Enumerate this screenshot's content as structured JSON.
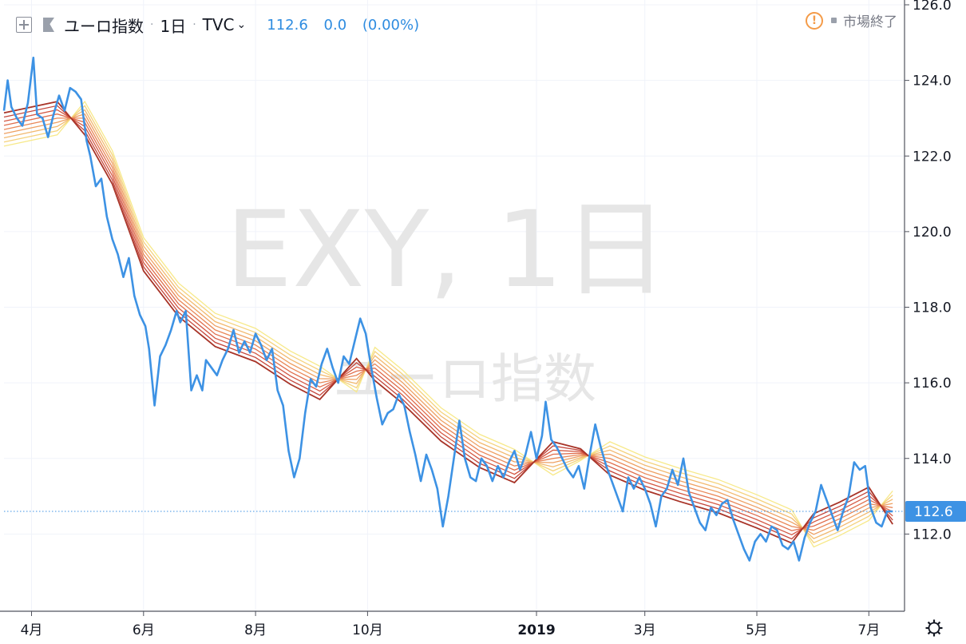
{
  "legend": {
    "symbol": "ユーロ指数",
    "interval": "1日",
    "exchange": "TVC",
    "price": "112.6",
    "change": "0.0",
    "change_pct": "(0.00%)"
  },
  "status": {
    "text": "市場終了"
  },
  "watermark": {
    "ticker": "EXY, 1日",
    "name": "ユーロ指数"
  },
  "icons": {
    "add": "plus-square-icon",
    "flag": "flag-icon",
    "alert": "alert-circle-icon",
    "settings": "gear-icon"
  },
  "colors": {
    "price_line": "#3d92e4",
    "price_badge": "#3d92e4",
    "ribbon": [
      "#f7e98a",
      "#f5d27c",
      "#f2b96f",
      "#eea062",
      "#e98757",
      "#e06e4d",
      "#d45843",
      "#c4453a",
      "#a83428"
    ]
  },
  "chart_data": {
    "type": "line",
    "title": "ユーロ指数",
    "ylim": [
      110.0,
      126.0
    ],
    "y_ticks": [
      "112.0",
      "114.0",
      "116.0",
      "118.0",
      "120.0",
      "122.0",
      "124.0",
      "126.0"
    ],
    "x_ticks": [
      "4月",
      "6月",
      "8月",
      "10月",
      "2019",
      "3月",
      "5月",
      "7月"
    ],
    "x_range": [
      "2018-03-17",
      "2019-07-20"
    ],
    "x_tick_dates": [
      "2018-04-01",
      "2018-06-01",
      "2018-08-01",
      "2018-10-01",
      "2019-01-01",
      "2019-03-01",
      "2019-05-01",
      "2019-07-01"
    ],
    "current_price": "112.6",
    "grid": true,
    "series": [
      {
        "name": "ユーロ指数",
        "style": "price",
        "points": [
          [
            "2018-03-17",
            123.2
          ],
          [
            "2018-03-19",
            124.0
          ],
          [
            "2018-03-21",
            123.3
          ],
          [
            "2018-03-24",
            123.0
          ],
          [
            "2018-03-27",
            122.8
          ],
          [
            "2018-03-30",
            123.4
          ],
          [
            "2018-04-02",
            124.6
          ],
          [
            "2018-04-04",
            123.1
          ],
          [
            "2018-04-07",
            123.0
          ],
          [
            "2018-04-10",
            122.5
          ],
          [
            "2018-04-13",
            123.1
          ],
          [
            "2018-04-16",
            123.6
          ],
          [
            "2018-04-19",
            123.2
          ],
          [
            "2018-04-22",
            123.8
          ],
          [
            "2018-04-25",
            123.7
          ],
          [
            "2018-04-28",
            123.5
          ],
          [
            "2018-05-01",
            122.4
          ],
          [
            "2018-05-03",
            122.0
          ],
          [
            "2018-05-06",
            121.2
          ],
          [
            "2018-05-09",
            121.4
          ],
          [
            "2018-05-12",
            120.4
          ],
          [
            "2018-05-15",
            119.8
          ],
          [
            "2018-05-18",
            119.4
          ],
          [
            "2018-05-21",
            118.8
          ],
          [
            "2018-05-24",
            119.3
          ],
          [
            "2018-05-27",
            118.3
          ],
          [
            "2018-05-30",
            117.8
          ],
          [
            "2018-06-02",
            117.5
          ],
          [
            "2018-06-04",
            116.9
          ],
          [
            "2018-06-07",
            115.4
          ],
          [
            "2018-06-10",
            116.7
          ],
          [
            "2018-06-13",
            117.0
          ],
          [
            "2018-06-16",
            117.4
          ],
          [
            "2018-06-19",
            117.9
          ],
          [
            "2018-06-21",
            117.6
          ],
          [
            "2018-06-24",
            117.9
          ],
          [
            "2018-06-27",
            115.8
          ],
          [
            "2018-06-30",
            116.2
          ],
          [
            "2018-07-03",
            115.8
          ],
          [
            "2018-07-05",
            116.6
          ],
          [
            "2018-07-08",
            116.4
          ],
          [
            "2018-07-11",
            116.2
          ],
          [
            "2018-07-14",
            116.6
          ],
          [
            "2018-07-17",
            116.9
          ],
          [
            "2018-07-20",
            117.4
          ],
          [
            "2018-07-23",
            116.8
          ],
          [
            "2018-07-26",
            117.1
          ],
          [
            "2018-07-29",
            116.8
          ],
          [
            "2018-08-01",
            117.3
          ],
          [
            "2018-08-04",
            117.0
          ],
          [
            "2018-08-07",
            116.6
          ],
          [
            "2018-08-10",
            116.9
          ],
          [
            "2018-08-13",
            115.8
          ],
          [
            "2018-08-16",
            115.4
          ],
          [
            "2018-08-19",
            114.2
          ],
          [
            "2018-08-22",
            113.5
          ],
          [
            "2018-08-25",
            114.0
          ],
          [
            "2018-08-28",
            115.2
          ],
          [
            "2018-08-31",
            116.1
          ],
          [
            "2018-09-03",
            115.9
          ],
          [
            "2018-09-06",
            116.5
          ],
          [
            "2018-09-09",
            116.9
          ],
          [
            "2018-09-12",
            116.4
          ],
          [
            "2018-09-15",
            116.0
          ],
          [
            "2018-09-18",
            116.7
          ],
          [
            "2018-09-21",
            116.5
          ],
          [
            "2018-09-24",
            117.1
          ],
          [
            "2018-09-27",
            117.7
          ],
          [
            "2018-09-30",
            117.3
          ],
          [
            "2018-10-03",
            116.4
          ],
          [
            "2018-10-06",
            115.6
          ],
          [
            "2018-10-09",
            114.9
          ],
          [
            "2018-10-12",
            115.2
          ],
          [
            "2018-10-15",
            115.3
          ],
          [
            "2018-10-18",
            115.7
          ],
          [
            "2018-10-21",
            115.4
          ],
          [
            "2018-10-24",
            114.7
          ],
          [
            "2018-10-27",
            114.1
          ],
          [
            "2018-10-30",
            113.4
          ],
          [
            "2018-11-02",
            114.1
          ],
          [
            "2018-11-05",
            113.7
          ],
          [
            "2018-11-08",
            113.2
          ],
          [
            "2018-11-11",
            112.2
          ],
          [
            "2018-11-14",
            113.0
          ],
          [
            "2018-11-17",
            114.0
          ],
          [
            "2018-11-20",
            115.0
          ],
          [
            "2018-11-23",
            114.0
          ],
          [
            "2018-11-26",
            113.5
          ],
          [
            "2018-11-29",
            113.4
          ],
          [
            "2018-12-02",
            114.0
          ],
          [
            "2018-12-05",
            113.8
          ],
          [
            "2018-12-08",
            113.4
          ],
          [
            "2018-12-11",
            113.8
          ],
          [
            "2018-12-14",
            113.5
          ],
          [
            "2018-12-17",
            113.9
          ],
          [
            "2018-12-20",
            114.2
          ],
          [
            "2018-12-23",
            113.7
          ],
          [
            "2018-12-26",
            114.1
          ],
          [
            "2018-12-29",
            114.7
          ],
          [
            "2019-01-01",
            114.0
          ],
          [
            "2019-01-04",
            114.6
          ],
          [
            "2019-01-06",
            115.5
          ],
          [
            "2019-01-09",
            114.5
          ],
          [
            "2019-01-12",
            114.3
          ],
          [
            "2019-01-15",
            114.0
          ],
          [
            "2019-01-18",
            113.7
          ],
          [
            "2019-01-21",
            113.5
          ],
          [
            "2019-01-24",
            113.8
          ],
          [
            "2019-01-27",
            113.2
          ],
          [
            "2019-01-30",
            114.1
          ],
          [
            "2019-02-02",
            114.9
          ],
          [
            "2019-02-05",
            114.3
          ],
          [
            "2019-02-08",
            113.8
          ],
          [
            "2019-02-11",
            113.4
          ],
          [
            "2019-02-14",
            113.0
          ],
          [
            "2019-02-17",
            112.6
          ],
          [
            "2019-02-20",
            113.5
          ],
          [
            "2019-02-23",
            113.2
          ],
          [
            "2019-02-26",
            113.5
          ],
          [
            "2019-03-01",
            113.2
          ],
          [
            "2019-03-04",
            112.8
          ],
          [
            "2019-03-07",
            112.2
          ],
          [
            "2019-03-10",
            113.0
          ],
          [
            "2019-03-13",
            113.2
          ],
          [
            "2019-03-16",
            113.7
          ],
          [
            "2019-03-19",
            113.3
          ],
          [
            "2019-03-22",
            114.0
          ],
          [
            "2019-03-25",
            113.1
          ],
          [
            "2019-03-28",
            112.7
          ],
          [
            "2019-03-31",
            112.3
          ],
          [
            "2019-04-03",
            112.1
          ],
          [
            "2019-04-06",
            112.7
          ],
          [
            "2019-04-09",
            112.5
          ],
          [
            "2019-04-12",
            112.8
          ],
          [
            "2019-04-15",
            112.9
          ],
          [
            "2019-04-18",
            112.4
          ],
          [
            "2019-04-21",
            112.0
          ],
          [
            "2019-04-24",
            111.6
          ],
          [
            "2019-04-27",
            111.3
          ],
          [
            "2019-04-30",
            111.8
          ],
          [
            "2019-05-03",
            112.0
          ],
          [
            "2019-05-06",
            111.8
          ],
          [
            "2019-05-09",
            112.2
          ],
          [
            "2019-05-12",
            112.1
          ],
          [
            "2019-05-15",
            111.7
          ],
          [
            "2019-05-18",
            111.6
          ],
          [
            "2019-05-21",
            111.8
          ],
          [
            "2019-05-24",
            111.3
          ],
          [
            "2019-05-27",
            111.9
          ],
          [
            "2019-05-30",
            112.3
          ],
          [
            "2019-06-02",
            112.6
          ],
          [
            "2019-06-05",
            113.3
          ],
          [
            "2019-06-08",
            112.9
          ],
          [
            "2019-06-11",
            112.5
          ],
          [
            "2019-06-14",
            112.1
          ],
          [
            "2019-06-17",
            112.6
          ],
          [
            "2019-06-20",
            113.0
          ],
          [
            "2019-06-23",
            113.9
          ],
          [
            "2019-06-26",
            113.7
          ],
          [
            "2019-06-29",
            113.8
          ],
          [
            "2019-07-02",
            112.7
          ],
          [
            "2019-07-05",
            112.3
          ],
          [
            "2019-07-08",
            112.2
          ],
          [
            "2019-07-11",
            112.6
          ],
          [
            "2019-07-14",
            112.6
          ]
        ]
      },
      {
        "style": "ribbon-center",
        "points": [
          [
            "2018-03-17",
            122.7
          ],
          [
            "2018-04-15",
            123.0
          ],
          [
            "2018-04-30",
            123.0
          ],
          [
            "2018-05-15",
            121.7
          ],
          [
            "2018-06-01",
            119.4
          ],
          [
            "2018-06-20",
            118.2
          ],
          [
            "2018-07-10",
            117.4
          ],
          [
            "2018-08-01",
            117.0
          ],
          [
            "2018-08-20",
            116.4
          ],
          [
            "2018-09-05",
            116.0
          ],
          [
            "2018-09-25",
            116.2
          ],
          [
            "2018-10-05",
            116.5
          ],
          [
            "2018-10-20",
            115.9
          ],
          [
            "2018-11-10",
            114.9
          ],
          [
            "2018-12-01",
            114.2
          ],
          [
            "2018-12-20",
            113.8
          ],
          [
            "2019-01-10",
            114.0
          ],
          [
            "2019-01-25",
            114.1
          ],
          [
            "2019-02-10",
            114.0
          ],
          [
            "2019-03-01",
            113.6
          ],
          [
            "2019-03-20",
            113.3
          ],
          [
            "2019-04-10",
            113.0
          ],
          [
            "2019-05-01",
            112.6
          ],
          [
            "2019-05-20",
            112.2
          ],
          [
            "2019-06-01",
            112.1
          ],
          [
            "2019-06-15",
            112.4
          ],
          [
            "2019-07-01",
            112.8
          ],
          [
            "2019-07-14",
            112.7
          ]
        ]
      }
    ]
  }
}
